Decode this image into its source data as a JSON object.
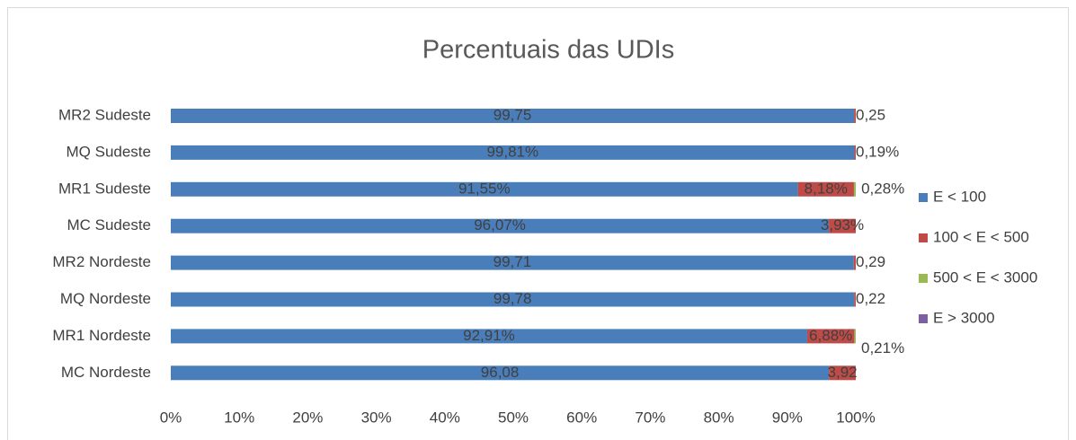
{
  "chart_data": {
    "type": "stacked_barh",
    "title": "Percentuais das UDIs",
    "categories": [
      "MR2 Sudeste",
      "MQ Sudeste",
      "MR1 Sudeste",
      "MC Sudeste",
      "MR2 Nordeste",
      "MQ Nordeste",
      "MR1 Nordeste",
      "MC Nordeste"
    ],
    "series": [
      {
        "name": "E < 100",
        "color": "#4a7ebb",
        "values": [
          99.75,
          99.81,
          91.55,
          96.07,
          99.71,
          99.78,
          92.91,
          96.08
        ],
        "value_labels": [
          "99,75",
          "99,81%",
          "91,55%",
          "96,07%",
          "99,71",
          "99,78",
          "92,91%",
          "96,08"
        ]
      },
      {
        "name": "100 < E < 500",
        "color": "#be4b48",
        "values": [
          0.25,
          0.19,
          8.18,
          3.93,
          0.29,
          0.22,
          6.88,
          3.92
        ],
        "value_labels": [
          "0,25",
          "0,19%",
          "8,18%",
          "3,93%",
          "0,29",
          "0,22",
          "6,88%",
          "3,92"
        ]
      },
      {
        "name": "500 < E < 3000",
        "color": "#98b954",
        "values": [
          null,
          null,
          0.28,
          null,
          null,
          null,
          0.21,
          null
        ],
        "value_labels": [
          null,
          null,
          "0,28%",
          null,
          null,
          null,
          "0,21%",
          null
        ]
      },
      {
        "name": "E > 3000",
        "color": "#7d60a0",
        "values": [
          null,
          null,
          null,
          null,
          null,
          null,
          null,
          null
        ]
      }
    ],
    "xlim": [
      0,
      100
    ],
    "xticks": [
      {
        "value": 0,
        "label": "0%"
      },
      {
        "value": 10,
        "label": "10%"
      },
      {
        "value": 20,
        "label": "20%"
      },
      {
        "value": 30,
        "label": "30%"
      },
      {
        "value": 40,
        "label": "40%"
      },
      {
        "value": 50,
        "label": "50%"
      },
      {
        "value": 60,
        "label": "60%"
      },
      {
        "value": 70,
        "label": "70%"
      },
      {
        "value": 80,
        "label": "80%"
      },
      {
        "value": 90,
        "label": "90%"
      },
      {
        "value": 100,
        "label": "100%"
      }
    ],
    "legend": "right"
  }
}
